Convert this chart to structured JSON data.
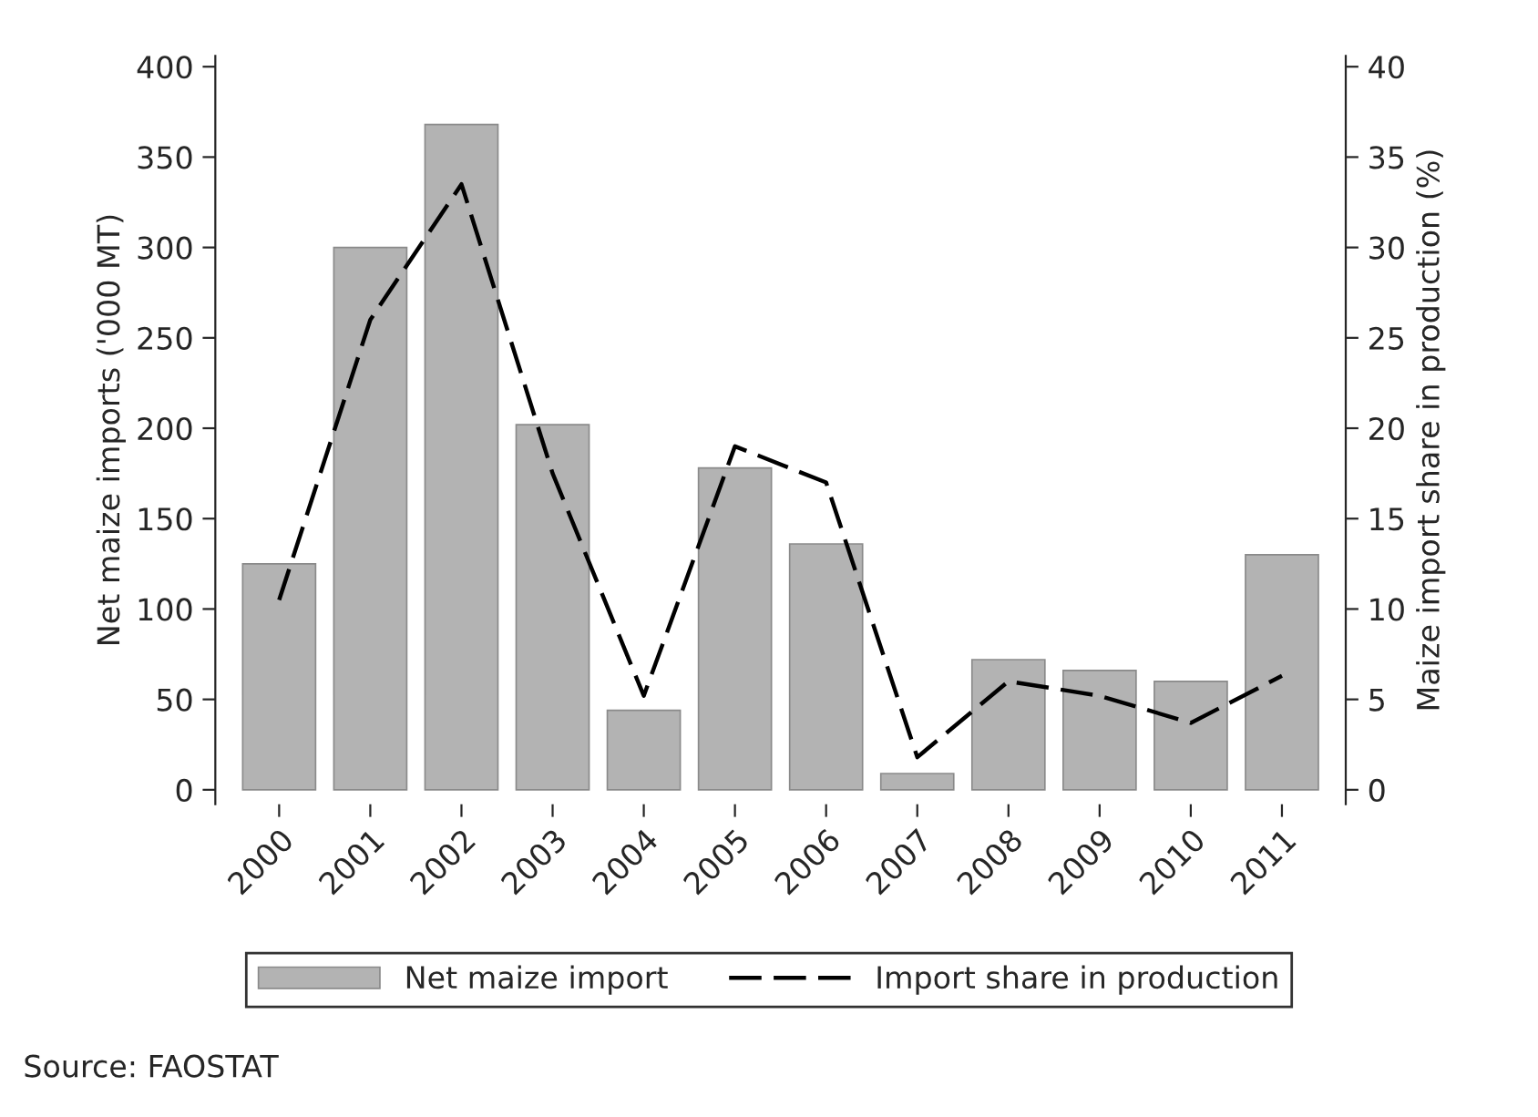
{
  "chart_data": {
    "type": "bar",
    "categories": [
      "2000",
      "2001",
      "2002",
      "2003",
      "2004",
      "2005",
      "2006",
      "2007",
      "2008",
      "2009",
      "2010",
      "2011"
    ],
    "series": [
      {
        "name": "Net maize import",
        "color": "#b3b3b3",
        "values": [
          125,
          300,
          368,
          202,
          44,
          178,
          136,
          9,
          72,
          66,
          60,
          130
        ]
      },
      {
        "name": "Import share in production",
        "type": "line",
        "axis": "y2",
        "color": "#000000",
        "line_style": "dashed",
        "values": [
          10.5,
          26,
          33.5,
          17.5,
          5.2,
          19,
          17,
          1.8,
          6,
          5.2,
          3.7,
          6.3
        ]
      }
    ],
    "ylabel": "Net maize imports ('000 MT)",
    "y2label": "Maize import share in production (%)",
    "ylim": [
      -8,
      406
    ],
    "yticks": [
      0,
      50,
      100,
      150,
      200,
      250,
      300,
      350,
      400
    ],
    "y2lim": [
      -0.8,
      40.6
    ],
    "y2ticks": [
      0,
      5,
      10,
      15,
      20,
      25,
      30,
      35,
      40
    ],
    "legend": "bottom",
    "grid": false,
    "annotations": [
      "Source: FAOSTAT"
    ]
  }
}
